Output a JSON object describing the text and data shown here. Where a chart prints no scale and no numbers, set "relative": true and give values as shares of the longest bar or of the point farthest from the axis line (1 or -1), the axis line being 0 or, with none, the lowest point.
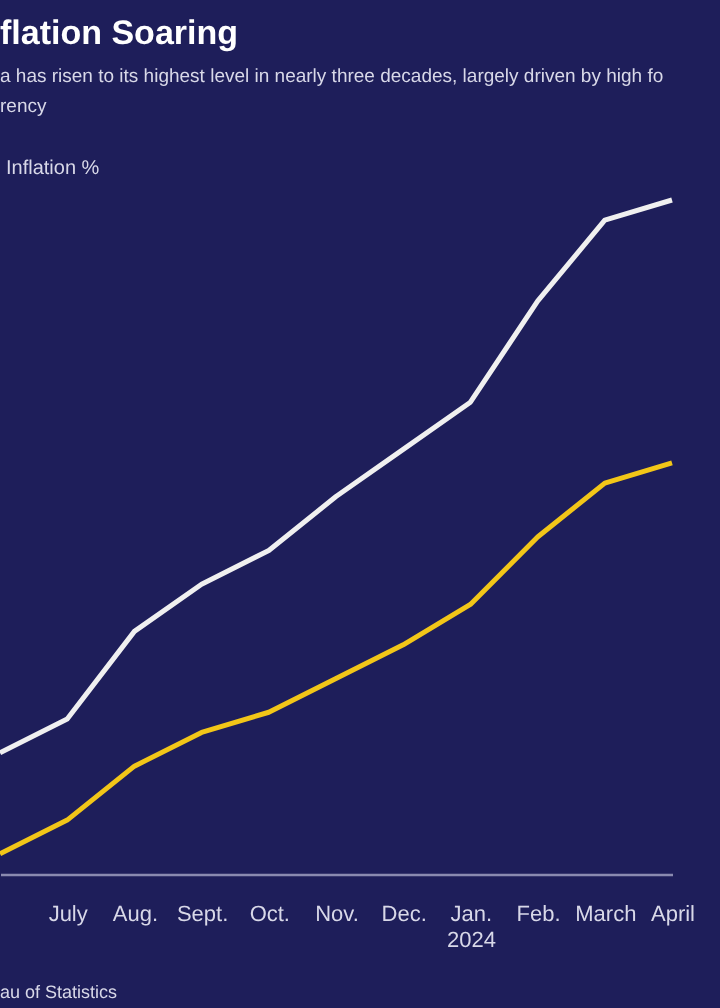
{
  "chart_data": {
    "type": "line",
    "title": "flation Soaring",
    "subtitle": "a has risen to its highest level in nearly three decades, largely driven by high fo\nrency",
    "categories": [
      null,
      "July",
      "Aug.",
      "Sept.",
      "Oct.",
      "Nov.",
      "Dec.",
      "Jan.\n2024",
      "Feb.",
      "March",
      "April"
    ],
    "relative": true,
    "series": [
      {
        "color": "#f0f0f0",
        "values": [
          0.18,
          0.23,
          0.36,
          0.43,
          0.48,
          0.56,
          0.63,
          0.7,
          0.85,
          0.97,
          1
        ]
      },
      {
        "color": "#f2c618",
        "values": [
          0.03,
          0.08,
          0.16,
          0.21,
          0.24,
          0.29,
          0.34,
          0.4,
          0.5,
          0.58,
          0.61
        ]
      }
    ],
    "legend": false,
    "marker": "none",
    "line_style": "solid",
    "annotations": [
      "Inflation %",
      "au of Statistics"
    ]
  }
}
